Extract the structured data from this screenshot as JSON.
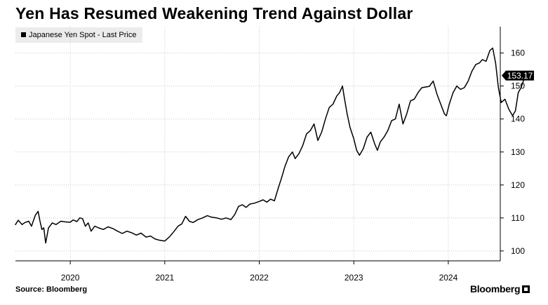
{
  "chart_data": {
    "type": "line",
    "title": "Yen Has Resumed Weakening Trend Against Dollar",
    "legend": "Japanese Yen Spot - Last Price",
    "legend_placement": "top-left",
    "last_value_label": "153.17",
    "source": "Source: Bloomberg",
    "brand": "Bloomberg",
    "y_axis_side": "right",
    "grid": "dotted",
    "ylim": [
      97,
      168
    ],
    "xlim": [
      2019.42,
      2024.55
    ],
    "y_ticks": [
      100,
      110,
      120,
      130,
      140,
      150,
      160
    ],
    "x_ticks": [
      {
        "label": "2020",
        "value": 2020.0
      },
      {
        "label": "2021",
        "value": 2021.0
      },
      {
        "label": "2022",
        "value": 2022.0
      },
      {
        "label": "2023",
        "value": 2023.0
      },
      {
        "label": "2024",
        "value": 2024.0
      }
    ],
    "series": [
      {
        "name": "Japanese Yen Spot - Last Price",
        "color": "#000000",
        "points": [
          [
            2019.42,
            108.0
          ],
          [
            2019.45,
            109.3
          ],
          [
            2019.49,
            108.0
          ],
          [
            2019.52,
            108.6
          ],
          [
            2019.56,
            109.0
          ],
          [
            2019.59,
            107.5
          ],
          [
            2019.63,
            110.8
          ],
          [
            2019.66,
            112.0
          ],
          [
            2019.68,
            109.0
          ],
          [
            2019.7,
            106.5
          ],
          [
            2019.72,
            107.0
          ],
          [
            2019.74,
            102.4
          ],
          [
            2019.77,
            107.0
          ],
          [
            2019.81,
            108.5
          ],
          [
            2019.85,
            108.0
          ],
          [
            2019.9,
            109.0
          ],
          [
            2019.95,
            108.8
          ],
          [
            2020.0,
            108.7
          ],
          [
            2020.03,
            109.4
          ],
          [
            2020.07,
            108.9
          ],
          [
            2020.1,
            110.0
          ],
          [
            2020.13,
            109.8
          ],
          [
            2020.16,
            107.5
          ],
          [
            2020.19,
            108.5
          ],
          [
            2020.22,
            106.0
          ],
          [
            2020.26,
            107.5
          ],
          [
            2020.3,
            107.0
          ],
          [
            2020.35,
            106.5
          ],
          [
            2020.4,
            107.3
          ],
          [
            2020.45,
            106.8
          ],
          [
            2020.5,
            106.0
          ],
          [
            2020.55,
            105.3
          ],
          [
            2020.6,
            106.0
          ],
          [
            2020.65,
            105.5
          ],
          [
            2020.7,
            104.8
          ],
          [
            2020.75,
            105.4
          ],
          [
            2020.8,
            104.2
          ],
          [
            2020.85,
            104.5
          ],
          [
            2020.9,
            103.6
          ],
          [
            2020.95,
            103.2
          ],
          [
            2021.0,
            103.0
          ],
          [
            2021.05,
            104.3
          ],
          [
            2021.1,
            106.0
          ],
          [
            2021.14,
            107.5
          ],
          [
            2021.18,
            108.2
          ],
          [
            2021.22,
            110.5
          ],
          [
            2021.26,
            109.0
          ],
          [
            2021.3,
            108.6
          ],
          [
            2021.35,
            109.5
          ],
          [
            2021.4,
            110.0
          ],
          [
            2021.45,
            110.7
          ],
          [
            2021.5,
            110.2
          ],
          [
            2021.55,
            110.0
          ],
          [
            2021.6,
            109.6
          ],
          [
            2021.65,
            110.0
          ],
          [
            2021.7,
            109.5
          ],
          [
            2021.74,
            111.0
          ],
          [
            2021.78,
            113.5
          ],
          [
            2021.82,
            114.0
          ],
          [
            2021.86,
            113.2
          ],
          [
            2021.9,
            114.2
          ],
          [
            2021.95,
            114.5
          ],
          [
            2022.0,
            115.0
          ],
          [
            2022.04,
            115.5
          ],
          [
            2022.08,
            114.8
          ],
          [
            2022.12,
            115.7
          ],
          [
            2022.16,
            115.2
          ],
          [
            2022.2,
            119.0
          ],
          [
            2022.24,
            122.5
          ],
          [
            2022.27,
            125.5
          ],
          [
            2022.31,
            128.5
          ],
          [
            2022.35,
            130.0
          ],
          [
            2022.38,
            128.0
          ],
          [
            2022.42,
            129.5
          ],
          [
            2022.46,
            132.0
          ],
          [
            2022.5,
            135.5
          ],
          [
            2022.54,
            136.5
          ],
          [
            2022.58,
            138.5
          ],
          [
            2022.62,
            133.5
          ],
          [
            2022.66,
            136.0
          ],
          [
            2022.7,
            140.0
          ],
          [
            2022.74,
            143.5
          ],
          [
            2022.78,
            144.5
          ],
          [
            2022.82,
            147.0
          ],
          [
            2022.85,
            148.0
          ],
          [
            2022.88,
            150.0
          ],
          [
            2022.9,
            146.5
          ],
          [
            2022.93,
            141.5
          ],
          [
            2022.96,
            137.5
          ],
          [
            2023.0,
            134.0
          ],
          [
            2023.03,
            130.5
          ],
          [
            2023.06,
            129.0
          ],
          [
            2023.1,
            131.0
          ],
          [
            2023.14,
            134.5
          ],
          [
            2023.18,
            136.0
          ],
          [
            2023.22,
            132.5
          ],
          [
            2023.25,
            130.5
          ],
          [
            2023.28,
            133.0
          ],
          [
            2023.32,
            134.5
          ],
          [
            2023.36,
            136.5
          ],
          [
            2023.4,
            139.5
          ],
          [
            2023.44,
            140.0
          ],
          [
            2023.48,
            144.5
          ],
          [
            2023.52,
            138.5
          ],
          [
            2023.56,
            141.5
          ],
          [
            2023.6,
            145.5
          ],
          [
            2023.64,
            146.0
          ],
          [
            2023.68,
            148.0
          ],
          [
            2023.72,
            149.5
          ],
          [
            2023.76,
            149.7
          ],
          [
            2023.8,
            149.9
          ],
          [
            2023.84,
            151.5
          ],
          [
            2023.88,
            147.5
          ],
          [
            2023.92,
            144.5
          ],
          [
            2023.96,
            141.5
          ],
          [
            2023.98,
            141.0
          ],
          [
            2024.01,
            144.5
          ],
          [
            2024.05,
            148.0
          ],
          [
            2024.09,
            150.0
          ],
          [
            2024.13,
            149.0
          ],
          [
            2024.17,
            149.5
          ],
          [
            2024.21,
            151.5
          ],
          [
            2024.25,
            154.5
          ],
          [
            2024.29,
            156.5
          ],
          [
            2024.33,
            157.0
          ],
          [
            2024.36,
            158.0
          ],
          [
            2024.4,
            157.5
          ],
          [
            2024.44,
            160.8
          ],
          [
            2024.47,
            161.5
          ],
          [
            2024.5,
            157.0
          ],
          [
            2024.53,
            149.5
          ],
          [
            2024.56,
            145.0
          ],
          [
            2024.6,
            146.0
          ],
          [
            2024.64,
            143.0
          ],
          [
            2024.68,
            141.0
          ],
          [
            2024.71,
            142.5
          ],
          [
            2024.74,
            148.0
          ],
          [
            2024.77,
            149.5
          ],
          [
            2024.8,
            152.0
          ],
          [
            2024.82,
            153.17
          ]
        ]
      }
    ]
  }
}
